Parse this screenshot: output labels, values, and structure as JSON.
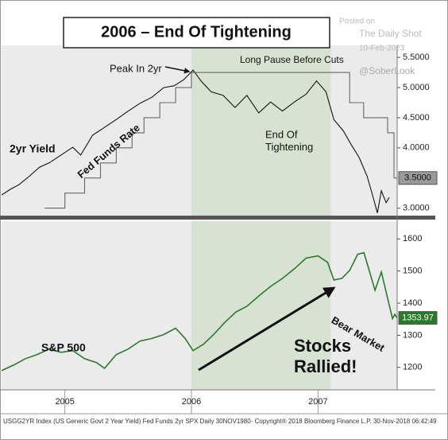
{
  "watermark": [
    "Posted on",
    "The Daily Shot",
    "10-Feb-2023",
    "@SoberLook"
  ],
  "footer": "USGG2YR Index (US Generic Govt 2 Year Yield) Fed Funds 2yr SPX  Daily 30NOV1980-    Copyright® 2018 Bloomberg Finance L.P.    30-Nov-2018 06:42:49",
  "chart_data": [
    {
      "type": "line",
      "title": "2006 – End Of Tightening",
      "xlim": [
        2004.5,
        2007.625
      ],
      "ylim": [
        2.85,
        5.7
      ],
      "yticks": [
        {
          "value": 5.5,
          "label": "5.5000"
        },
        {
          "value": 5.0,
          "label": "5.0000"
        },
        {
          "value": 4.5,
          "label": "4.5000"
        },
        {
          "value": 4.0,
          "label": "4.0000"
        },
        {
          "value": 3.0,
          "label": "3.0000"
        }
      ],
      "shade": [
        2006.0,
        2007.1
      ],
      "annotations": [
        {
          "lines": [
            "2yr Yield"
          ]
        },
        {
          "lines": [
            "Fed Funds Rate"
          ]
        },
        {
          "lines": [
            "Peak In 2yr"
          ]
        },
        {
          "lines": [
            "Long Pause Before Cuts"
          ]
        },
        {
          "lines": [
            "End Of",
            "Tightening"
          ]
        }
      ],
      "series": [
        {
          "name": "2yr Yield",
          "color": "#111111",
          "x": [
            2004.5,
            2004.575,
            2004.638,
            2004.719,
            2004.8,
            2004.875,
            2004.969,
            2005.063,
            2005.125,
            2005.219,
            2005.313,
            2005.406,
            2005.5,
            2005.594,
            2005.688,
            2005.781,
            2005.863,
            2005.938,
            2006.013,
            2006.075,
            2006.156,
            2006.25,
            2006.344,
            2006.438,
            2006.531,
            2006.625,
            2006.719,
            2006.813,
            2006.906,
            2006.988,
            2007.063,
            2007.125,
            2007.2,
            2007.263,
            2007.325,
            2007.388,
            2007.438,
            2007.469,
            2007.5,
            2007.538,
            2007.563
          ],
          "values": [
            3.22,
            3.32,
            3.39,
            3.53,
            3.68,
            3.75,
            3.88,
            4.01,
            3.88,
            4.21,
            4.34,
            4.47,
            4.61,
            4.74,
            4.84,
            5.0,
            5.03,
            5.13,
            5.29,
            5.11,
            4.93,
            4.87,
            4.67,
            4.87,
            4.58,
            4.76,
            4.61,
            4.76,
            4.89,
            5.11,
            4.93,
            4.47,
            4.28,
            4.05,
            3.84,
            3.53,
            3.16,
            2.92,
            3.29,
            3.09,
            3.18
          ]
        },
        {
          "name": "Fed Funds Rate",
          "color": "#666666",
          "x": [
            2004.84,
            2005.0,
            2005.0,
            2005.156,
            2005.156,
            2005.281,
            2005.281,
            2005.406,
            2005.406,
            2005.531,
            2005.531,
            2005.625,
            2005.625,
            2005.75,
            2005.75,
            2005.875,
            2005.875,
            2006.0,
            2006.0,
            2007.25,
            2007.25,
            2007.36,
            2007.36,
            2007.55,
            2007.55,
            2007.6,
            2007.6,
            2007.625
          ],
          "values": [
            3.0,
            3.0,
            3.25,
            3.25,
            3.5,
            3.5,
            3.75,
            3.75,
            4.0,
            4.0,
            4.25,
            4.25,
            4.5,
            4.5,
            4.75,
            4.75,
            5.0,
            5.0,
            5.25,
            5.25,
            4.75,
            4.75,
            4.5,
            4.5,
            4.25,
            4.25,
            3.5,
            3.5
          ],
          "value_labels": [
            null,
            null,
            null,
            null,
            null,
            null,
            null,
            null,
            null,
            null,
            null,
            null,
            null,
            null,
            null,
            null,
            null,
            null,
            null,
            null,
            null,
            null,
            null,
            null,
            null,
            null,
            null,
            "3.5000"
          ]
        }
      ]
    },
    {
      "type": "line",
      "xlim": [
        2004.5,
        2007.625
      ],
      "ylim": [
        1130,
        1655
      ],
      "xticks": [
        2005,
        2006,
        2007
      ],
      "yticks": [
        1600,
        1500,
        1400,
        1300,
        1200
      ],
      "shade": [
        2006.0,
        2007.1
      ],
      "annotations": [
        {
          "lines": [
            "S&P 500"
          ]
        },
        {
          "lines": [
            "Stocks",
            "Rallied!"
          ]
        },
        {
          "lines": [
            "Bear Market"
          ]
        }
      ],
      "series": [
        {
          "name": "S&P 500",
          "color": "#2b7a2b",
          "x": [
            2004.5,
            2004.594,
            2004.688,
            2004.781,
            2004.875,
            2004.969,
            2005.063,
            2005.156,
            2005.25,
            2005.313,
            2005.406,
            2005.5,
            2005.594,
            2005.688,
            2005.781,
            2005.875,
            2005.95,
            2006.013,
            2006.094,
            2006.175,
            2006.263,
            2006.35,
            2006.438,
            2006.531,
            2006.625,
            2006.719,
            2006.813,
            2006.906,
            2007.0,
            2007.075,
            2007.125,
            2007.188,
            2007.25,
            2007.313,
            2007.363,
            2007.413,
            2007.45,
            2007.5,
            2007.55,
            2007.588,
            2007.606,
            2007.625
          ],
          "values": [
            1190,
            1207,
            1227,
            1240,
            1257,
            1247,
            1252,
            1227,
            1215,
            1197,
            1240,
            1257,
            1282,
            1290,
            1302,
            1322,
            1290,
            1252,
            1272,
            1302,
            1340,
            1372,
            1390,
            1422,
            1452,
            1477,
            1507,
            1540,
            1547,
            1527,
            1472,
            1477,
            1502,
            1552,
            1557,
            1490,
            1440,
            1497,
            1415,
            1352,
            1365,
            1353.97
          ],
          "value_labels": [
            null,
            null,
            null,
            null,
            null,
            null,
            null,
            null,
            null,
            null,
            null,
            null,
            null,
            null,
            null,
            null,
            null,
            null,
            null,
            null,
            null,
            null,
            null,
            null,
            null,
            null,
            null,
            null,
            null,
            null,
            null,
            null,
            null,
            null,
            null,
            null,
            null,
            null,
            null,
            null,
            null,
            "1353.97"
          ]
        }
      ]
    }
  ]
}
